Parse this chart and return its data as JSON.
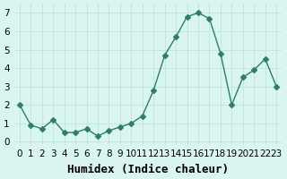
{
  "x": [
    0,
    1,
    2,
    3,
    4,
    5,
    6,
    7,
    8,
    9,
    10,
    11,
    12,
    13,
    14,
    15,
    16,
    17,
    18,
    19,
    20,
    21,
    22,
    23
  ],
  "y": [
    2.0,
    0.9,
    0.7,
    1.2,
    0.5,
    0.5,
    0.7,
    0.3,
    0.6,
    0.8,
    1.0,
    1.4,
    2.8,
    4.7,
    5.7,
    6.8,
    7.0,
    6.7,
    4.8,
    2.0,
    3.5,
    3.9,
    4.5,
    3.0
  ],
  "line_color": "#2e7d6e",
  "marker": "D",
  "marker_size": 3,
  "bg_color": "#d8f5f0",
  "grid_color": "#c0ddd8",
  "xlabel": "Humidex (Indice chaleur)",
  "xlabel_fontsize": 9,
  "tick_fontsize": 7.5,
  "yticks": [
    0,
    1,
    2,
    3,
    4,
    5,
    6,
    7
  ],
  "xticks": [
    0,
    1,
    2,
    3,
    4,
    5,
    6,
    7,
    8,
    9,
    10,
    11,
    12,
    13,
    14,
    15,
    16,
    17,
    18,
    19,
    20,
    21,
    22,
    23
  ],
  "xlim": [
    -0.5,
    23.5
  ],
  "ylim": [
    -0.2,
    7.5
  ]
}
